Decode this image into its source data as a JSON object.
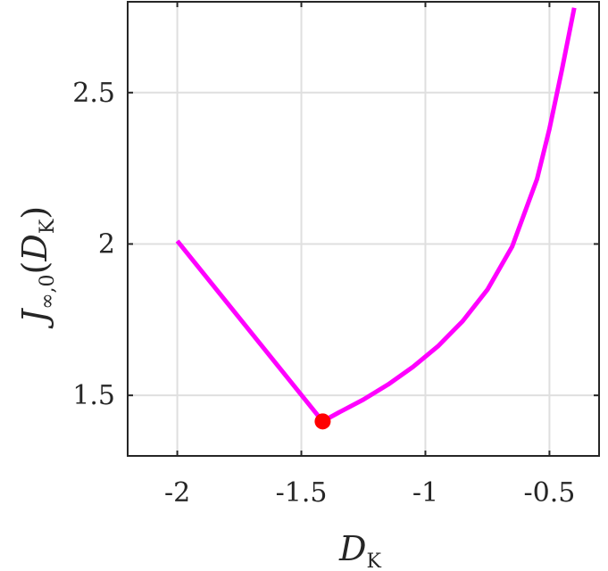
{
  "chart_data": {
    "type": "line",
    "xlabel": "D",
    "xlabel_sub": "K",
    "ylabel_main": "J",
    "ylabel_sub": "∞,0",
    "ylabel_paren_open": "(",
    "ylabel_arg": "D",
    "ylabel_arg_sub": "K",
    "ylabel_paren_close": ")",
    "xlim": [
      -2.2,
      -0.3
    ],
    "ylim": [
      1.3,
      2.8
    ],
    "xticks": [
      -2,
      -1.5,
      -1,
      -0.5
    ],
    "xtick_labels": [
      "-2",
      "-1.5",
      "-1",
      "-0.5"
    ],
    "yticks": [
      1.5,
      2,
      2.5
    ],
    "ytick_labels": [
      "1.5",
      "2",
      "2.5"
    ],
    "grid": true,
    "line_color": "#ff00ff",
    "marker_color": "#ff0000",
    "series": [
      {
        "x": [
          -2.0,
          -1.414,
          -1.35,
          -1.25,
          -1.15,
          -1.05,
          -0.95,
          -0.85,
          -0.75,
          -0.65,
          -0.55,
          -0.5,
          -0.45,
          -0.4
        ],
        "y": [
          2.01,
          1.414,
          1.443,
          1.486,
          1.536,
          1.594,
          1.662,
          1.745,
          1.849,
          1.992,
          2.214,
          2.38,
          2.574,
          2.78
        ]
      }
    ],
    "highlight_point": {
      "x": -1.414,
      "y": 1.414
    }
  }
}
